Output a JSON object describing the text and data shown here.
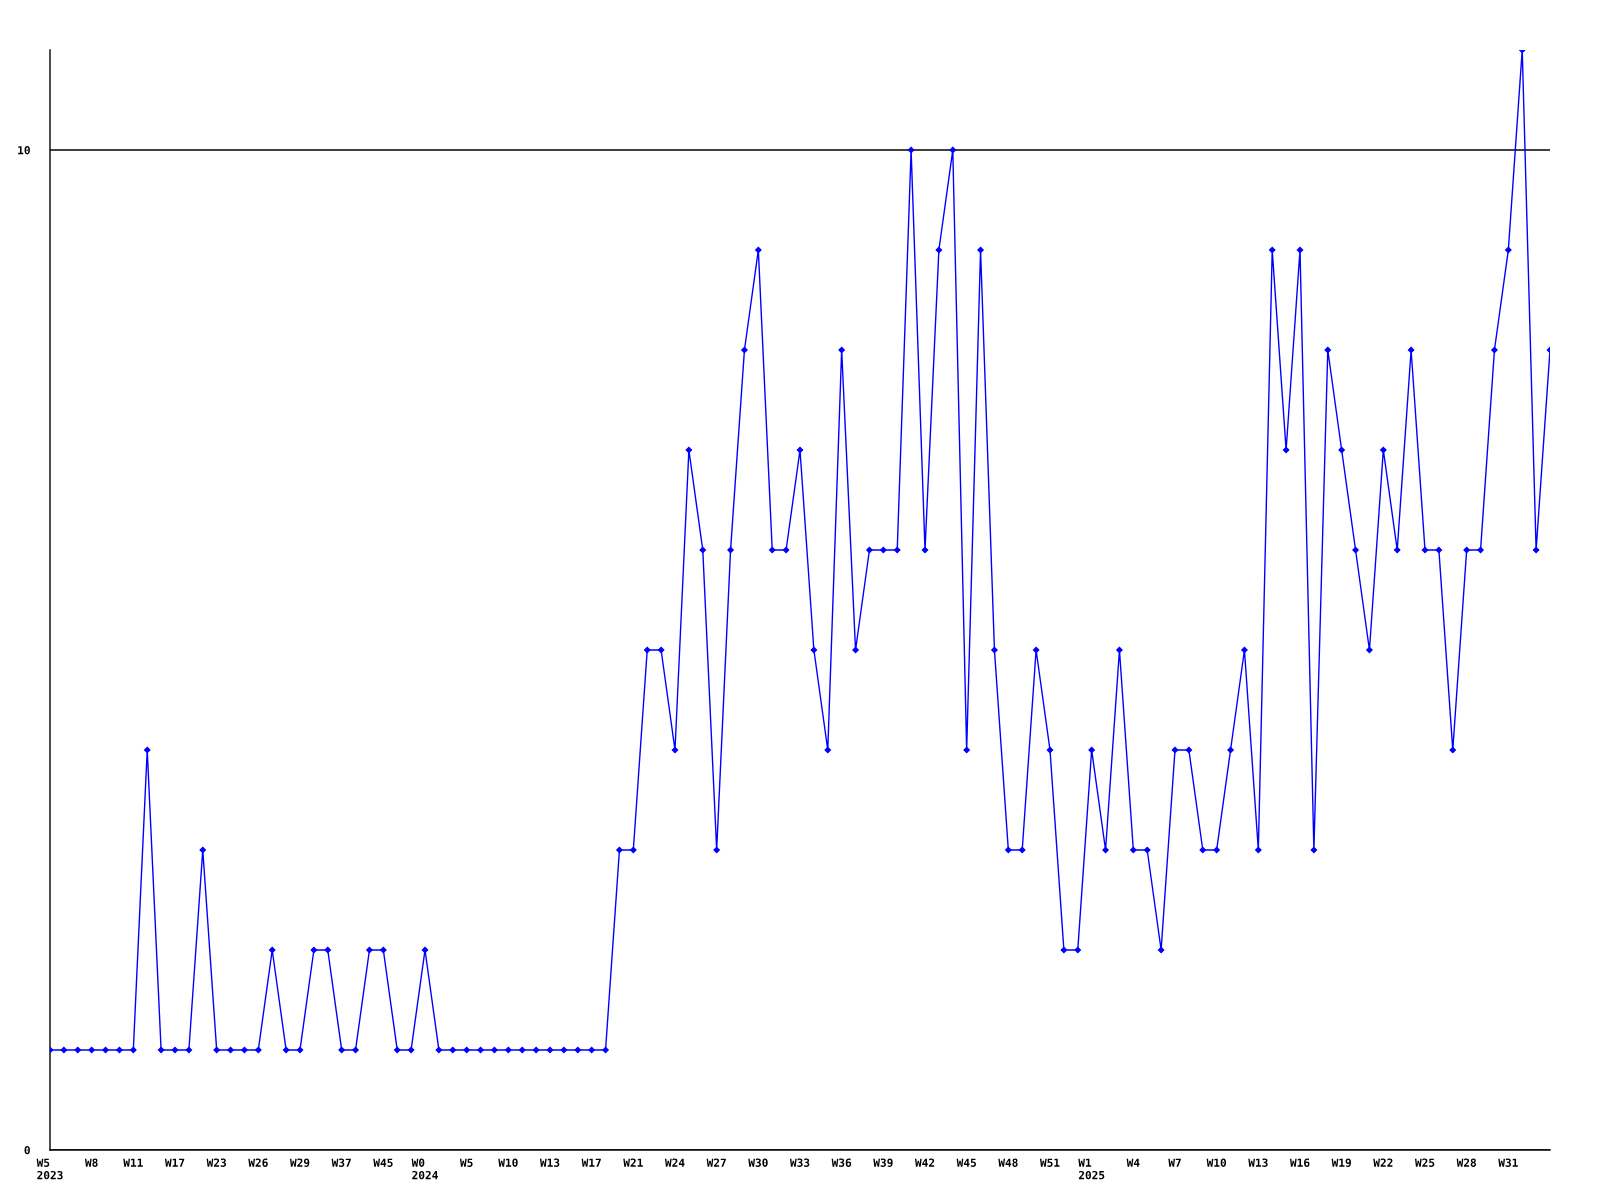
{
  "chart_data": {
    "type": "line",
    "categories": [
      "W5\n2023",
      null,
      null,
      "W8",
      null,
      null,
      "W11",
      null,
      null,
      "W17",
      null,
      null,
      "W23",
      null,
      null,
      "W26",
      null,
      null,
      "W29",
      null,
      null,
      "W37",
      null,
      null,
      "W45",
      null,
      null,
      "W0\n2024",
      null,
      null,
      "W5",
      null,
      null,
      "W10",
      null,
      null,
      "W13",
      null,
      null,
      "W17",
      null,
      null,
      "W21",
      null,
      null,
      "W24",
      null,
      null,
      "W27",
      null,
      null,
      "W30",
      null,
      null,
      "W33",
      null,
      null,
      "W36",
      null,
      null,
      "W39",
      null,
      null,
      "W42",
      null,
      null,
      "W45",
      null,
      null,
      "W48",
      null,
      null,
      "W51",
      null,
      null,
      "W1\n2025",
      null,
      null,
      "W4",
      null,
      null,
      "W7",
      null,
      null,
      "W10",
      null,
      null,
      "W13",
      null,
      null,
      "W16",
      null,
      null,
      "W19",
      null,
      null,
      "W22",
      null,
      null,
      "W25",
      null,
      null,
      "W28",
      null,
      null,
      "W31",
      null,
      null,
      null
    ],
    "series": [
      {
        "color": "#0000ff",
        "values": [
          1,
          1,
          1,
          1,
          1,
          1,
          1,
          4,
          1,
          1,
          1,
          3,
          1,
          1,
          1,
          1,
          2,
          1,
          1,
          2,
          2,
          1,
          1,
          2,
          2,
          1,
          1,
          2,
          1,
          1,
          1,
          1,
          1,
          1,
          1,
          1,
          1,
          1,
          1,
          1,
          1,
          3,
          3,
          5,
          5,
          4,
          7,
          6,
          3,
          6,
          8,
          9,
          6,
          6,
          7,
          5,
          4,
          8,
          5,
          6,
          6,
          6,
          10,
          6,
          9,
          10,
          4,
          9,
          5,
          3,
          3,
          5,
          4,
          2,
          2,
          4,
          3,
          5,
          3,
          3,
          2,
          4,
          4,
          3,
          3,
          4,
          5,
          3,
          9,
          7,
          9,
          3,
          8,
          7,
          6,
          5,
          7,
          6,
          8,
          6,
          6,
          4,
          6,
          6,
          8,
          9,
          11,
          6,
          8
        ]
      }
    ],
    "ylim": [
      0,
      11
    ],
    "yticks": [
      0,
      10
    ],
    "grid": "y",
    "marker": "diamond",
    "line_style": "solid"
  }
}
